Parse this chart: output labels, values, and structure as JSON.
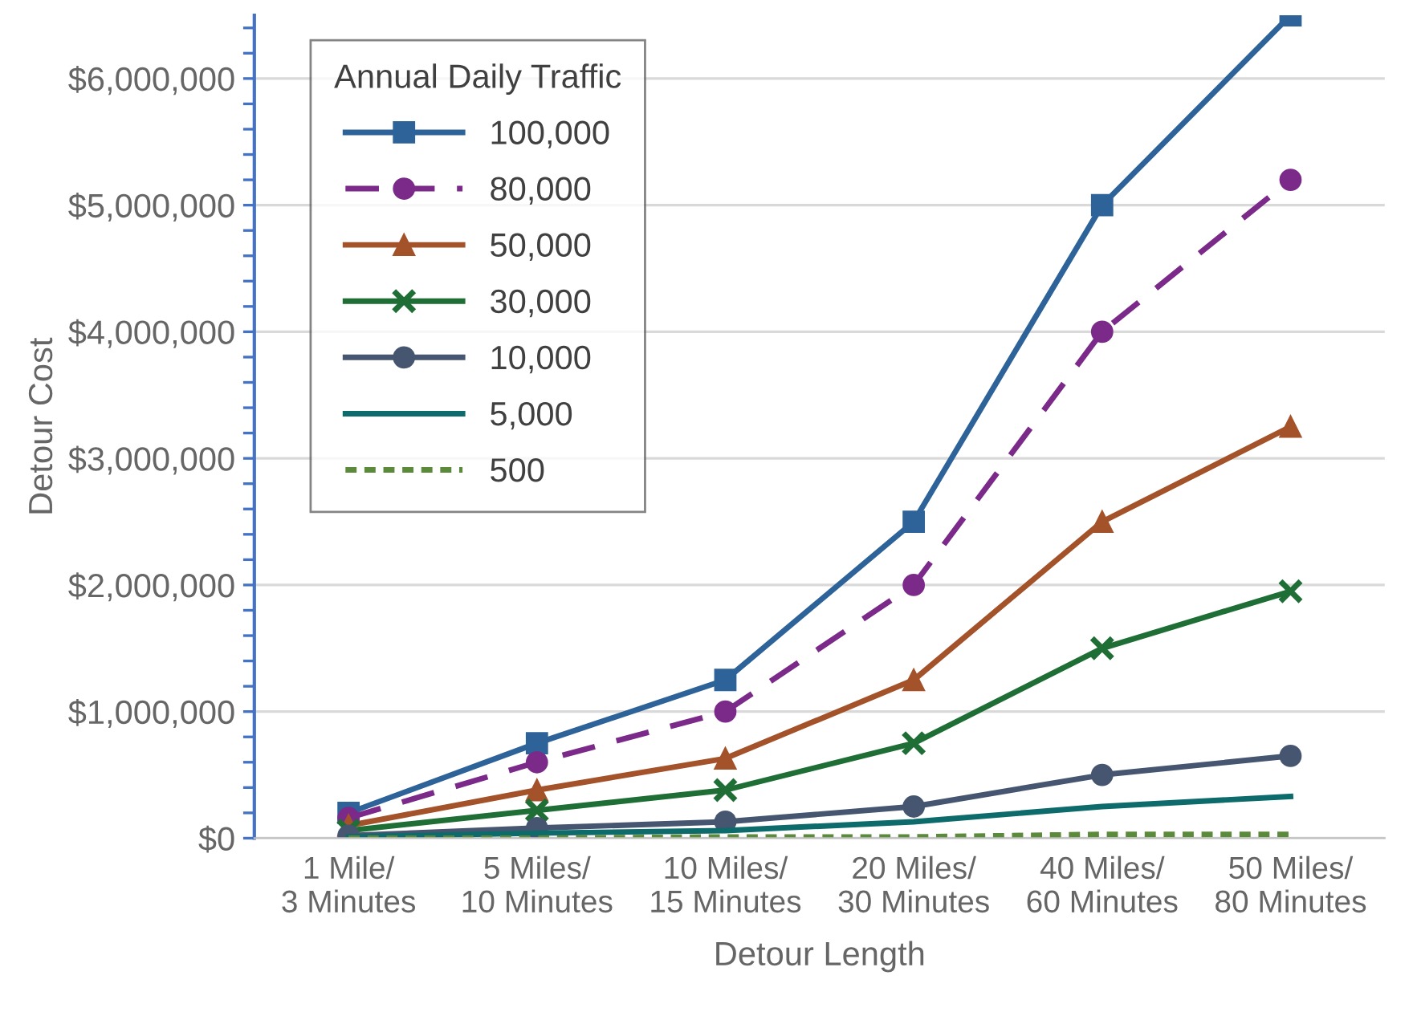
{
  "chart_data": {
    "type": "line",
    "xlabel": "Detour Length",
    "ylabel": "Detour Cost",
    "legend_title": "Annual Daily Traffic",
    "legend": "top left",
    "grid": "y",
    "categories": [
      "1 Mile/\n3 Minutes",
      "5 Miles/\n10 Minutes",
      "10 Miles/\n15 Minutes",
      "20 Miles/\n30 Minutes",
      "40 Miles/\n60 Minutes",
      "50 Miles/\n80 Minutes"
    ],
    "ylim": [
      0,
      6500000
    ],
    "yticks": [
      {
        "value": 0,
        "label": "$0"
      },
      {
        "value": 200000,
        "label": null
      },
      {
        "value": 400000,
        "label": null
      },
      {
        "value": 600000,
        "label": null
      },
      {
        "value": 800000,
        "label": null
      },
      {
        "value": 1000000,
        "label": "$1,000,000"
      },
      {
        "value": 1200000,
        "label": null
      },
      {
        "value": 1400000,
        "label": null
      },
      {
        "value": 1600000,
        "label": null
      },
      {
        "value": 1800000,
        "label": null
      },
      {
        "value": 2000000,
        "label": "$2,000,000"
      },
      {
        "value": 2200000,
        "label": null
      },
      {
        "value": 2400000,
        "label": null
      },
      {
        "value": 2600000,
        "label": null
      },
      {
        "value": 2800000,
        "label": null
      },
      {
        "value": 3000000,
        "label": "$3,000,000"
      },
      {
        "value": 3200000,
        "label": null
      },
      {
        "value": 3400000,
        "label": null
      },
      {
        "value": 3600000,
        "label": null
      },
      {
        "value": 3800000,
        "label": null
      },
      {
        "value": 4000000,
        "label": "$4,000,000"
      },
      {
        "value": 4200000,
        "label": null
      },
      {
        "value": 4400000,
        "label": null
      },
      {
        "value": 4600000,
        "label": null
      },
      {
        "value": 4800000,
        "label": null
      },
      {
        "value": 5000000,
        "label": "$5,000,000"
      },
      {
        "value": 5200000,
        "label": null
      },
      {
        "value": 5400000,
        "label": null
      },
      {
        "value": 5600000,
        "label": null
      },
      {
        "value": 5800000,
        "label": null
      },
      {
        "value": 6000000,
        "label": "$6,000,000"
      },
      {
        "value": 6200000,
        "label": null
      },
      {
        "value": 6400000,
        "label": null
      }
    ],
    "series": [
      {
        "name": "100,000",
        "color": "#2e6399",
        "marker": "square",
        "line_style": "solid",
        "values": [
          200000,
          750000,
          1250000,
          2500000,
          5000000,
          6500000
        ]
      },
      {
        "name": "80,000",
        "color": "#7b2a8a",
        "marker": "circle",
        "line_style": "dashed",
        "values": [
          160000,
          600000,
          1000000,
          2000000,
          4000000,
          5200000
        ]
      },
      {
        "name": "50,000",
        "color": "#a3522a",
        "marker": "triangle",
        "line_style": "solid",
        "values": [
          100000,
          380000,
          630000,
          1250000,
          2500000,
          3250000
        ]
      },
      {
        "name": "30,000",
        "color": "#1e6e36",
        "marker": "cross",
        "line_style": "solid",
        "values": [
          60000,
          220000,
          380000,
          750000,
          1500000,
          1950000
        ]
      },
      {
        "name": "10,000",
        "color": "#465570",
        "marker": "circle",
        "line_style": "solid",
        "values": [
          20000,
          80000,
          130000,
          250000,
          500000,
          650000
        ]
      },
      {
        "name": "5,000",
        "color": "#0e6b6b",
        "marker": "none",
        "line_style": "solid",
        "values": [
          10000,
          40000,
          60000,
          130000,
          250000,
          330000
        ]
      },
      {
        "name": "500",
        "color": "#5a8a3a",
        "marker": "none",
        "line_style": "dotted",
        "values": [
          0,
          0,
          10000,
          10000,
          30000,
          30000
        ]
      }
    ]
  }
}
